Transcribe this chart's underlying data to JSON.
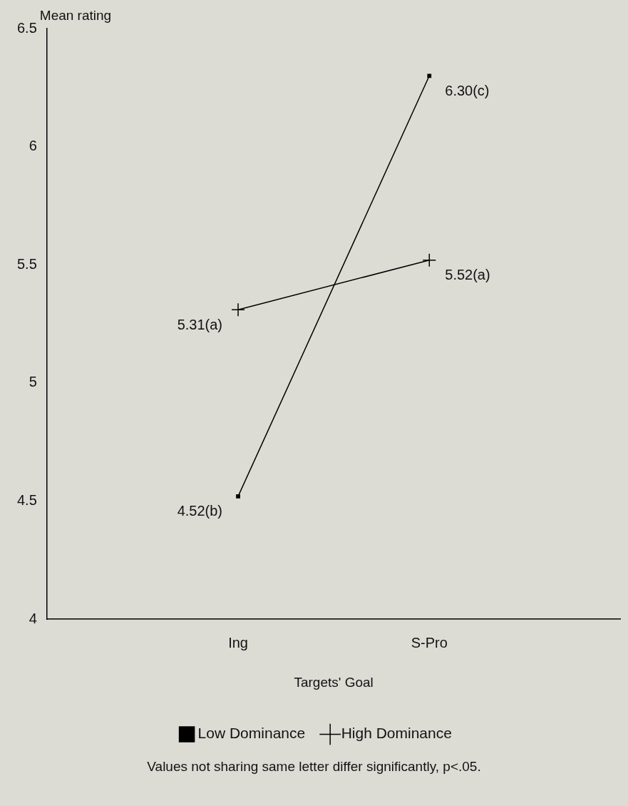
{
  "chart_data": {
    "type": "line",
    "xlabel": "Targets' Goal",
    "ylabel": "Mean rating",
    "categories": [
      "Ing",
      "S-Pro"
    ],
    "series": [
      {
        "name": "Low Dominance",
        "color": "#000000",
        "marker": "square",
        "values": [
          4.52,
          6.3
        ],
        "value_labels": [
          "4.52(b)",
          "6.30(c)"
        ]
      },
      {
        "name": "High Dominance",
        "color": "#000000",
        "marker": "cross",
        "values": [
          5.31,
          5.52
        ],
        "value_labels": [
          "5.31(a)",
          "5.52(a)"
        ]
      }
    ],
    "ylim": [
      4,
      6.5
    ],
    "yticks": [
      4,
      4.5,
      5,
      5.5,
      6,
      6.5
    ],
    "grid": false,
    "legend": "bottom",
    "line_style": "solid",
    "annotations": [
      "Values not sharing same letter differ significantly, p<.05."
    ]
  }
}
